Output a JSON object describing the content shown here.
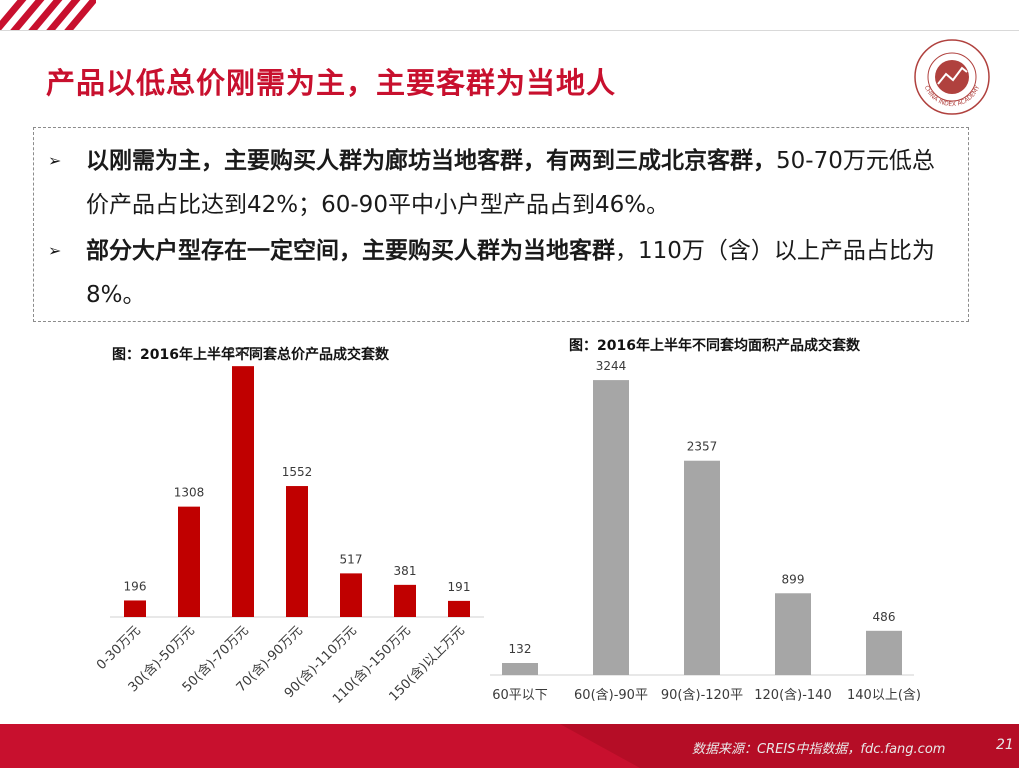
{
  "title": "产品以低总价刚需为主，主要客群为当地人",
  "logo": {
    "outer_text": "CHINA INDEX ACADEMY"
  },
  "bullets": [
    {
      "bold": "以刚需为主，主要购买人群为廊坊当地客群，有两到三成北京客群，",
      "rest": "50-70万元低总价产品占比达到42%；60-90平中小户型产品占到46%。"
    },
    {
      "bold": "部分大户型存在一定空间，主要购买人群为当地客群",
      "rest": "，110万（含）以上产品占比为8%。"
    }
  ],
  "colors": {
    "accent": "#c8102e",
    "bar_grey": "#a6a6a6",
    "text": "#1a1a1a"
  },
  "chart_data": [
    {
      "type": "bar",
      "title": "图：2016年上半年不同套总价产品成交套数",
      "categories": [
        "0-30万元",
        "30(含)-50万元",
        "50(含)-70万元",
        "70(含)-90万元",
        "90(含)-110万元",
        "110(含)-150万元",
        "150(含)以上万元"
      ],
      "values": [
        196,
        1308,
        2973,
        1552,
        517,
        381,
        191
      ],
      "color": "#c00000",
      "ylim": [
        0,
        3200
      ],
      "grid": false
    },
    {
      "type": "bar",
      "title": "图：2016年上半年不同套均面积产品成交套数",
      "categories": [
        "60平以下",
        "60(含)-90平",
        "90(含)-120平",
        "120(含)-140",
        "140以上(含)"
      ],
      "values": [
        132,
        3244,
        2357,
        899,
        486
      ],
      "color": "#a6a6a6",
      "ylim": [
        0,
        3300
      ],
      "grid": false
    }
  ],
  "footer": {
    "source": "数据来源：CREIS中指数据，fdc.fang.com",
    "page": "21"
  }
}
